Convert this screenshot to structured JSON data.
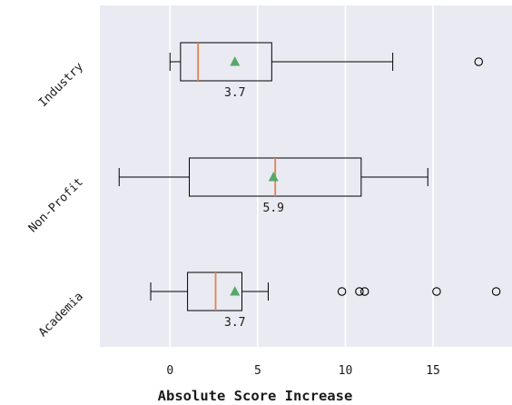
{
  "colors": {
    "plot_background": "#eaeaf2",
    "grid": "#ffffff",
    "box_edge": "#000000",
    "median": "#dd8452",
    "mean_marker": "#55a868",
    "flier_edge": "#000000"
  },
  "chart_data": {
    "type": "boxplot",
    "orientation": "horizontal",
    "xlabel": "Absolute Score Increase",
    "xlim": [
      -4,
      19.5
    ],
    "xticks": [
      0,
      5,
      10,
      15
    ],
    "xtick_labels": [
      "0",
      "5",
      "10",
      "15"
    ],
    "grid": "vertical, white",
    "categories": [
      "Industry",
      "Non-Profit",
      "Academia"
    ],
    "boxes": [
      {
        "name": "Industry",
        "whisker_low": 0,
        "q1": 0.6,
        "median": 1.6,
        "q3": 5.8,
        "whisker_high": 12.7,
        "mean": 3.7,
        "mean_label": "3.7",
        "outliers": [
          17.6
        ]
      },
      {
        "name": "Non-Profit",
        "whisker_low": -2.9,
        "q1": 1.1,
        "median": 6.0,
        "q3": 10.9,
        "whisker_high": 14.7,
        "mean": 5.9,
        "mean_label": "5.9",
        "outliers": []
      },
      {
        "name": "Academia",
        "whisker_low": -1.1,
        "q1": 1.0,
        "median": 2.6,
        "q3": 4.1,
        "whisker_high": 5.6,
        "mean": 3.7,
        "mean_label": "3.7",
        "outliers": [
          9.8,
          10.8,
          11.1,
          15.2,
          18.6
        ]
      }
    ]
  }
}
